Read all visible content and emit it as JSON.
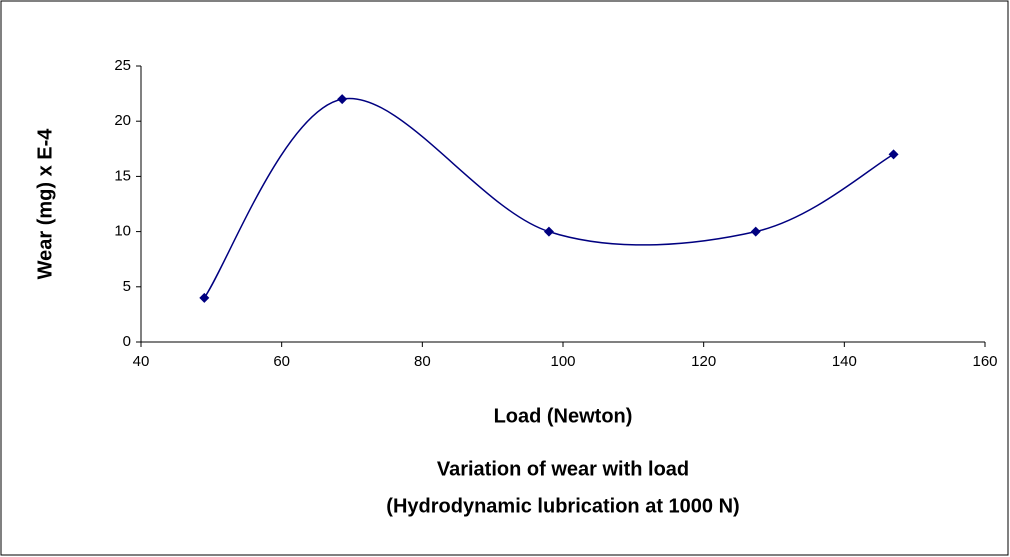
{
  "chart_data": {
    "type": "scatter",
    "smooth": true,
    "title": "Variation of wear with load",
    "subtitle": "(Hydrodynamic lubrication at 1000 N)",
    "x_label": "Load (Newton)",
    "y_label": "Wear (mg) x E-4",
    "x": [
      49,
      68.6,
      98,
      127.4,
      147
    ],
    "series": [
      {
        "name": "Wear",
        "color": "#000080",
        "values": [
          4,
          22,
          10,
          10,
          17
        ]
      }
    ],
    "xlim": [
      40,
      160
    ],
    "xticks": [
      40,
      60,
      80,
      100,
      120,
      140,
      160
    ],
    "ylim": [
      0,
      25
    ],
    "yticks": [
      0,
      5,
      10,
      15,
      20,
      25
    ],
    "grid": false
  }
}
